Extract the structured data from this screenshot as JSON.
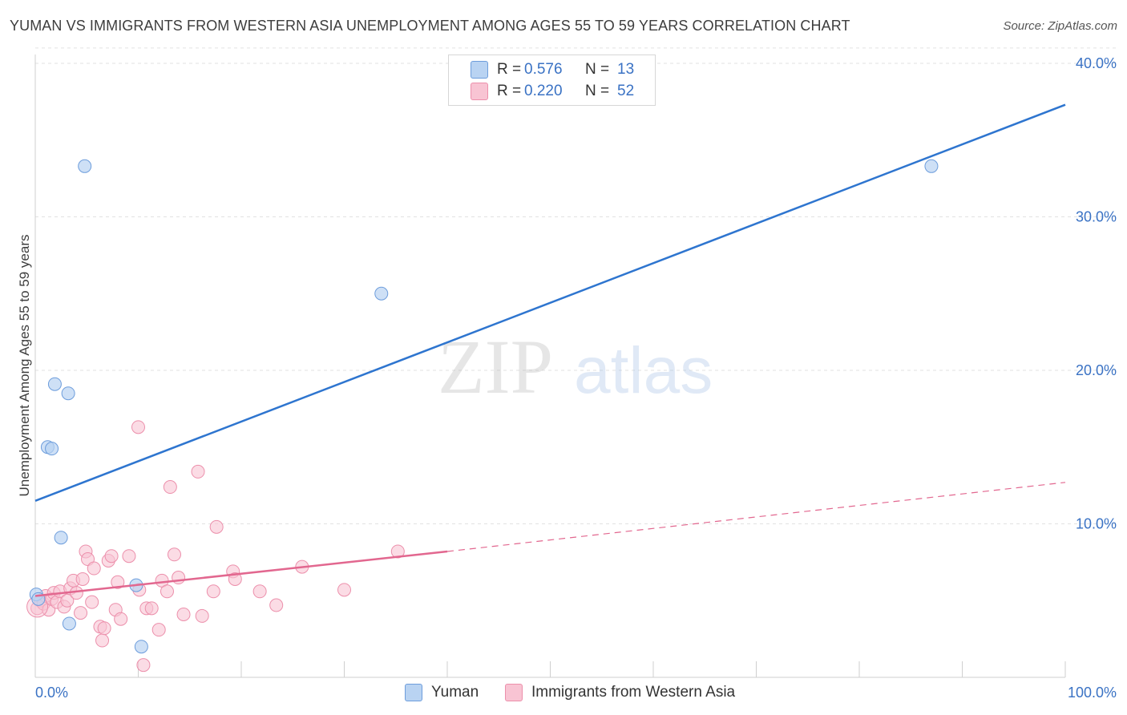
{
  "header": {
    "title": "YUMAN VS IMMIGRANTS FROM WESTERN ASIA UNEMPLOYMENT AMONG AGES 55 TO 59 YEARS CORRELATION CHART",
    "source": "Source: ZipAtlas.com"
  },
  "watermark": {
    "zip": "ZIP",
    "atlas": "atlas"
  },
  "legend_top": {
    "rows": [
      {
        "r_label": "R =",
        "r_value": "0.576",
        "n_label": "N =",
        "n_value": "13"
      },
      {
        "r_label": "R =",
        "r_value": "0.220",
        "n_label": "N =",
        "n_value": "52"
      }
    ]
  },
  "legend_bottom": {
    "items": [
      "Yuman",
      "Immigrants from Western Asia"
    ]
  },
  "colors": {
    "yuman_fill": "#b9d3f2",
    "yuman_stroke": "#6d9ddc",
    "yuman_line": "#2e75cf",
    "immig_fill": "#f8c4d3",
    "immig_stroke": "#ec8fab",
    "immig_line": "#e2678f",
    "tick_label": "#3a72c4",
    "grid": "#e2e2e2"
  },
  "chart_data": {
    "type": "scatter",
    "title": "YUMAN VS IMMIGRANTS FROM WESTERN ASIA UNEMPLOYMENT AMONG AGES 55 TO 59 YEARS CORRELATION CHART",
    "xlabel": "",
    "ylabel": "Unemployment Among Ages 55 to 59 years",
    "xlim": [
      0,
      100
    ],
    "ylim": [
      0,
      41
    ],
    "x_tick_labels": [
      "0.0%",
      "100.0%"
    ],
    "y_ticks": [
      10,
      20,
      30,
      40
    ],
    "y_tick_labels": [
      "10.0%",
      "20.0%",
      "30.0%",
      "40.0%"
    ],
    "grid": true,
    "legend_position": "top-center",
    "series": [
      {
        "name": "Yuman",
        "points": [
          [
            0.1,
            5.4
          ],
          [
            0.3,
            5.1
          ],
          [
            1.2,
            15.0
          ],
          [
            1.6,
            14.9
          ],
          [
            1.9,
            19.1
          ],
          [
            2.5,
            9.1
          ],
          [
            3.2,
            18.5
          ],
          [
            3.3,
            3.5
          ],
          [
            4.8,
            33.3
          ],
          [
            9.8,
            6.0
          ],
          [
            10.3,
            2.0
          ],
          [
            33.6,
            25.0
          ],
          [
            87.0,
            33.3
          ]
        ],
        "trend": {
          "x": [
            0,
            100
          ],
          "y": [
            11.5,
            37.3
          ]
        }
      },
      {
        "name": "Immigrants from Western Asia",
        "points": [
          [
            0.2,
            4.5
          ],
          [
            0.5,
            5.0
          ],
          [
            0.8,
            4.8
          ],
          [
            1.0,
            5.3
          ],
          [
            1.3,
            4.4
          ],
          [
            1.6,
            5.1
          ],
          [
            1.8,
            5.5
          ],
          [
            2.1,
            4.9
          ],
          [
            2.4,
            5.6
          ],
          [
            2.8,
            4.6
          ],
          [
            3.1,
            5.0
          ],
          [
            3.4,
            5.8
          ],
          [
            3.7,
            6.3
          ],
          [
            4.0,
            5.5
          ],
          [
            4.4,
            4.2
          ],
          [
            4.6,
            6.4
          ],
          [
            4.9,
            8.2
          ],
          [
            5.1,
            7.7
          ],
          [
            5.5,
            4.9
          ],
          [
            5.7,
            7.1
          ],
          [
            6.3,
            3.3
          ],
          [
            6.5,
            2.4
          ],
          [
            6.7,
            3.2
          ],
          [
            7.1,
            7.6
          ],
          [
            7.4,
            7.9
          ],
          [
            7.8,
            4.4
          ],
          [
            8.0,
            6.2
          ],
          [
            8.3,
            3.8
          ],
          [
            9.1,
            7.9
          ],
          [
            10.0,
            16.3
          ],
          [
            10.1,
            5.7
          ],
          [
            10.5,
            0.8
          ],
          [
            10.8,
            4.5
          ],
          [
            11.3,
            4.5
          ],
          [
            12.0,
            3.1
          ],
          [
            12.3,
            6.3
          ],
          [
            12.8,
            5.6
          ],
          [
            13.1,
            12.4
          ],
          [
            13.5,
            8.0
          ],
          [
            13.9,
            6.5
          ],
          [
            14.4,
            4.1
          ],
          [
            15.8,
            13.4
          ],
          [
            16.2,
            4.0
          ],
          [
            17.3,
            5.6
          ],
          [
            17.6,
            9.8
          ],
          [
            19.2,
            6.9
          ],
          [
            19.4,
            6.4
          ],
          [
            21.8,
            5.6
          ],
          [
            23.4,
            4.7
          ],
          [
            25.9,
            7.2
          ],
          [
            30.0,
            5.7
          ],
          [
            35.2,
            8.2
          ]
        ],
        "trend": {
          "x": [
            0,
            40
          ],
          "y": [
            5.3,
            8.2
          ]
        },
        "trend_extension": {
          "x": [
            40,
            100
          ],
          "y": [
            8.2,
            12.7
          ]
        }
      }
    ]
  }
}
